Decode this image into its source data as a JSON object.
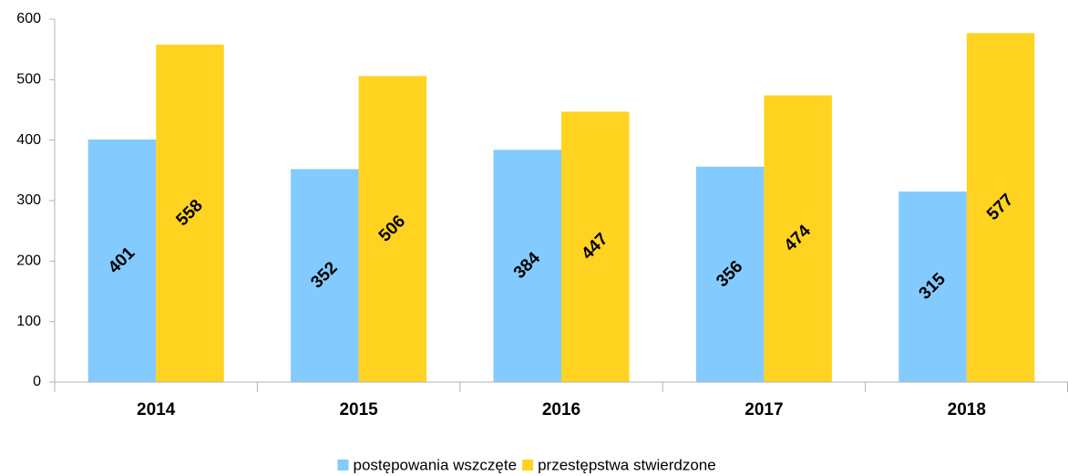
{
  "chart_data": {
    "type": "bar",
    "categories": [
      "2014",
      "2015",
      "2016",
      "2017",
      "2018"
    ],
    "series": [
      {
        "name": "postępowania wszczęte",
        "color": "#83caff",
        "values": [
          401,
          352,
          384,
          356,
          315
        ]
      },
      {
        "name": "przestępstwa stwierdzone",
        "color": "#ffd320",
        "values": [
          558,
          506,
          447,
          474,
          577
        ]
      }
    ],
    "ylim": [
      0,
      600
    ],
    "yticks": [
      0,
      100,
      200,
      300,
      400,
      500,
      600
    ],
    "grid": false,
    "legend": "bottom"
  }
}
